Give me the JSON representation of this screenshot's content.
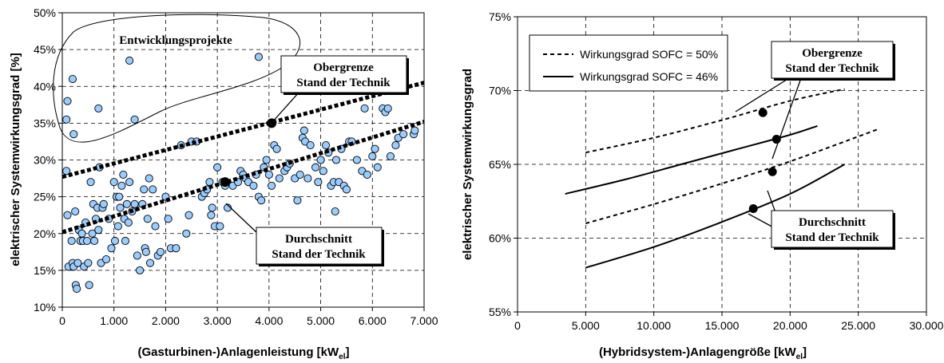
{
  "chart_data": [
    {
      "type": "scatter",
      "xlabel_main": "(Gasturbinen-)Anlagenleistung [kW",
      "xlabel_sub": "el",
      "xlabel_end": "]",
      "ylabel": "elektrischer Systemwirkungsgrad [%]",
      "xlim": [
        0,
        7000
      ],
      "ylim": [
        10,
        50
      ],
      "x_ticks": [
        "0",
        "1.000",
        "2.000",
        "3.000",
        "4.000",
        "5.000",
        "6.000",
        "7.000"
      ],
      "y_ticks": [
        "10%",
        "15%",
        "20%",
        "25%",
        "30%",
        "35%",
        "40%",
        "45%",
        "50%"
      ],
      "grid": true,
      "point_color": "#99ccff",
      "points": [
        [
          100,
          38
        ],
        [
          80,
          35.5
        ],
        [
          200,
          41
        ],
        [
          220,
          33.5
        ],
        [
          700,
          37
        ],
        [
          1300,
          43.5
        ],
        [
          1400,
          35.5
        ],
        [
          3800,
          44
        ],
        [
          80,
          28.5
        ],
        [
          100,
          22.5
        ],
        [
          120,
          15.5
        ],
        [
          180,
          19
        ],
        [
          200,
          16
        ],
        [
          220,
          15.5
        ],
        [
          250,
          23
        ],
        [
          260,
          13
        ],
        [
          280,
          12.5
        ],
        [
          300,
          16
        ],
        [
          320,
          20.5
        ],
        [
          350,
          19
        ],
        [
          380,
          20
        ],
        [
          400,
          19
        ],
        [
          420,
          15.5
        ],
        [
          450,
          21.5
        ],
        [
          480,
          19
        ],
        [
          500,
          16
        ],
        [
          520,
          13
        ],
        [
          550,
          27
        ],
        [
          580,
          20
        ],
        [
          600,
          24
        ],
        [
          620,
          19
        ],
        [
          650,
          22
        ],
        [
          680,
          23.5
        ],
        [
          700,
          20.5
        ],
        [
          720,
          29
        ],
        [
          750,
          16
        ],
        [
          780,
          23.5
        ],
        [
          800,
          24
        ],
        [
          850,
          16.5
        ],
        [
          900,
          22
        ],
        [
          950,
          18
        ],
        [
          1000,
          27
        ],
        [
          1020,
          19
        ],
        [
          1050,
          25
        ],
        [
          1080,
          21
        ],
        [
          1100,
          25
        ],
        [
          1120,
          23.5
        ],
        [
          1150,
          26.5
        ],
        [
          1180,
          28
        ],
        [
          1200,
          22
        ],
        [
          1220,
          19
        ],
        [
          1250,
          24
        ],
        [
          1280,
          21.5
        ],
        [
          1300,
          27
        ],
        [
          1350,
          23
        ],
        [
          1400,
          24
        ],
        [
          1450,
          17
        ],
        [
          1500,
          15
        ],
        [
          1550,
          24
        ],
        [
          1580,
          26
        ],
        [
          1600,
          18
        ],
        [
          1620,
          17.5
        ],
        [
          1650,
          22
        ],
        [
          1680,
          27.5
        ],
        [
          1700,
          16
        ],
        [
          1750,
          26
        ],
        [
          1800,
          21
        ],
        [
          1850,
          17
        ],
        [
          1900,
          17.5
        ],
        [
          2000,
          25
        ],
        [
          2050,
          22
        ],
        [
          2100,
          18
        ],
        [
          2200,
          18
        ],
        [
          2300,
          32
        ],
        [
          2400,
          20
        ],
        [
          2450,
          22.5
        ],
        [
          2500,
          32.5
        ],
        [
          2600,
          32.5
        ],
        [
          2700,
          25
        ],
        [
          2750,
          25.5
        ],
        [
          2800,
          26
        ],
        [
          2850,
          27
        ],
        [
          2880,
          22.5
        ],
        [
          2900,
          23.5
        ],
        [
          2950,
          21
        ],
        [
          3000,
          29
        ],
        [
          3050,
          21
        ],
        [
          3100,
          27
        ],
        [
          3150,
          26.5
        ],
        [
          3200,
          23.5
        ],
        [
          3300,
          26.5
        ],
        [
          3400,
          27
        ],
        [
          3450,
          28.5
        ],
        [
          3500,
          28
        ],
        [
          3550,
          27.5
        ],
        [
          3600,
          27
        ],
        [
          3700,
          26.5
        ],
        [
          3750,
          28
        ],
        [
          3800,
          25
        ],
        [
          3850,
          24.5
        ],
        [
          3900,
          29
        ],
        [
          3950,
          30
        ],
        [
          4000,
          28
        ],
        [
          4050,
          26.5
        ],
        [
          4100,
          32
        ],
        [
          4150,
          31.5
        ],
        [
          4200,
          27.5
        ],
        [
          4300,
          28.5
        ],
        [
          4350,
          29
        ],
        [
          4400,
          29.5
        ],
        [
          4500,
          27.5
        ],
        [
          4550,
          24.5
        ],
        [
          4600,
          28
        ],
        [
          4650,
          33
        ],
        [
          4680,
          34
        ],
        [
          4700,
          32.5
        ],
        [
          4750,
          27.5
        ],
        [
          4800,
          32
        ],
        [
          4900,
          29
        ],
        [
          4950,
          27
        ],
        [
          5000,
          30
        ],
        [
          5050,
          28.5
        ],
        [
          5100,
          32
        ],
        [
          5150,
          31
        ],
        [
          5200,
          26.5
        ],
        [
          5250,
          27
        ],
        [
          5280,
          23
        ],
        [
          5300,
          30
        ],
        [
          5350,
          27
        ],
        [
          5400,
          31.5
        ],
        [
          5450,
          26.5
        ],
        [
          5500,
          26
        ],
        [
          5550,
          32.5
        ],
        [
          5600,
          32.5
        ],
        [
          5700,
          30
        ],
        [
          5800,
          28.5
        ],
        [
          5850,
          37
        ],
        [
          5900,
          28
        ],
        [
          6000,
          30.5
        ],
        [
          6050,
          31.5
        ],
        [
          6100,
          29
        ],
        [
          6200,
          37
        ],
        [
          6250,
          36.5
        ],
        [
          6300,
          37
        ],
        [
          6350,
          30.5
        ],
        [
          6450,
          32
        ],
        [
          6500,
          33
        ],
        [
          6600,
          33.5
        ],
        [
          6800,
          33.5
        ],
        [
          6820,
          34
        ]
      ],
      "lines": [
        {
          "label": "Obergrenze Stand der Technik",
          "from": [
            0,
            27.7
          ],
          "to": [
            7000,
            40.5
          ]
        },
        {
          "label": "Durchschnitt Stand der Technik",
          "from": [
            0,
            20.2
          ],
          "to": [
            7000,
            35.2
          ]
        }
      ],
      "markers": [
        [
          4050,
          35
        ],
        [
          3150,
          27
        ]
      ],
      "annotations": {
        "cluster": "Entwicklungsprojekte",
        "upper_line1": "Obergrenze",
        "upper_line2": "Stand der Technik",
        "avg_line1": "Durchschnitt",
        "avg_line2": "Stand der Technik"
      }
    },
    {
      "type": "line",
      "xlabel_main": "(Hybridsystem-)Anlagengröße [kW",
      "xlabel_sub": "el",
      "xlabel_end": "]",
      "ylabel": "elektrischer Systemwirkungsgrad",
      "xlim": [
        0,
        30000
      ],
      "ylim": [
        55,
        75
      ],
      "x_ticks": [
        "0",
        "5.000",
        "10.000",
        "15.000",
        "20.000",
        "25.000",
        "30.000"
      ],
      "y_ticks": [
        "55%",
        "60%",
        "65%",
        "70%",
        "75%"
      ],
      "grid": true,
      "legend": {
        "placement": "top-left",
        "entries": [
          "Wirkungsgrad SOFC = 50%",
          "Wirkungsgrad SOFC = 46%"
        ]
      },
      "series": [
        {
          "name": "Wirkungsgrad SOFC = 50%",
          "style": "dashed",
          "x": [
            5000,
            10000,
            15000,
            20000,
            24000
          ],
          "y": [
            65.8,
            66.8,
            68.0,
            69.3,
            70.1
          ]
        },
        {
          "name": "Wirkungsgrad SOFC = 50%",
          "style": "dashed",
          "x": [
            5000,
            10000,
            15000,
            20000,
            26500
          ],
          "y": [
            61.0,
            62.3,
            63.7,
            65.2,
            67.4
          ]
        },
        {
          "name": "Wirkungsgrad SOFC = 46%",
          "style": "solid",
          "x": [
            3500,
            8000,
            12000,
            16000,
            20000,
            22000
          ],
          "y": [
            63.0,
            64.0,
            65.0,
            66.0,
            67.0,
            67.6
          ]
        },
        {
          "name": "Wirkungsgrad SOFC = 46%",
          "style": "solid",
          "x": [
            5000,
            10000,
            15000,
            20000,
            24000
          ],
          "y": [
            58.0,
            59.4,
            61.1,
            63.0,
            65.0
          ]
        }
      ],
      "markers": [
        [
          18000,
          68.5
        ],
        [
          19000,
          66.7
        ],
        [
          18700,
          64.5
        ],
        [
          17300,
          62.0
        ]
      ],
      "annotations": {
        "upper_line1": "Obergrenze",
        "upper_line2": "Stand der Technik",
        "avg_line1": "Durchschnitt",
        "avg_line2": "Stand der Technik"
      }
    }
  ]
}
